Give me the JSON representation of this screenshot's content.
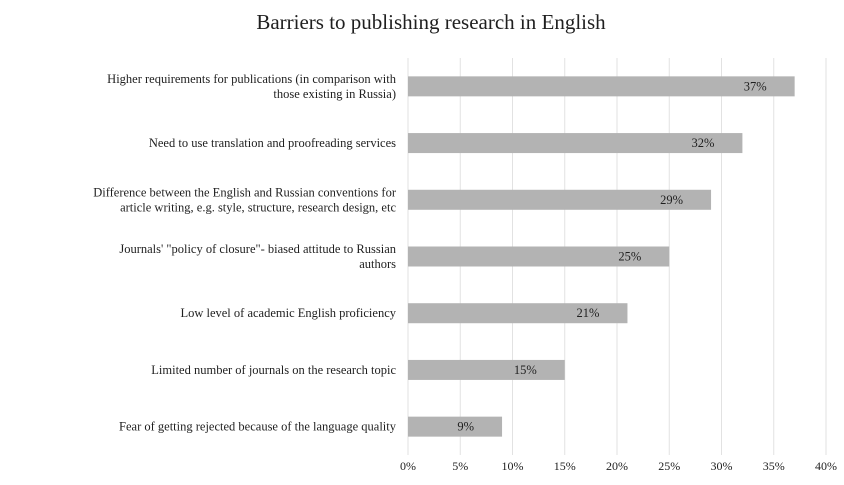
{
  "chart_data": {
    "type": "bar",
    "orientation": "horizontal",
    "title": "Barriers to publishing research in English",
    "xlabel": "",
    "ylabel": "",
    "xlim": [
      0,
      40
    ],
    "x_ticks": [
      "0%",
      "5%",
      "10%",
      "15%",
      "20%",
      "25%",
      "30%",
      "35%",
      "40%"
    ],
    "grid": "vertical",
    "legend": "none",
    "bar_color": "#b3b3b3",
    "categories": [
      [
        "Higher requirements for publications (in comparison with",
        "those existing in Russia)"
      ],
      [
        "Need to use translation and proofreading services"
      ],
      [
        "Difference between the English and Russian conventions for",
        "article writing, e.g. style, structure, research design, etc"
      ],
      [
        "Journals' \"policy of closure\"- biased attitude to Russian",
        "authors"
      ],
      [
        "Low level of academic English proficiency"
      ],
      [
        "Limited number of journals on the research topic"
      ],
      [
        "Fear of getting rejected because of the language quality"
      ]
    ],
    "values": [
      37,
      32,
      29,
      25,
      21,
      15,
      9
    ],
    "data_labels": [
      "37%",
      "32%",
      "29%",
      "25%",
      "21%",
      "15%",
      "9%"
    ]
  }
}
